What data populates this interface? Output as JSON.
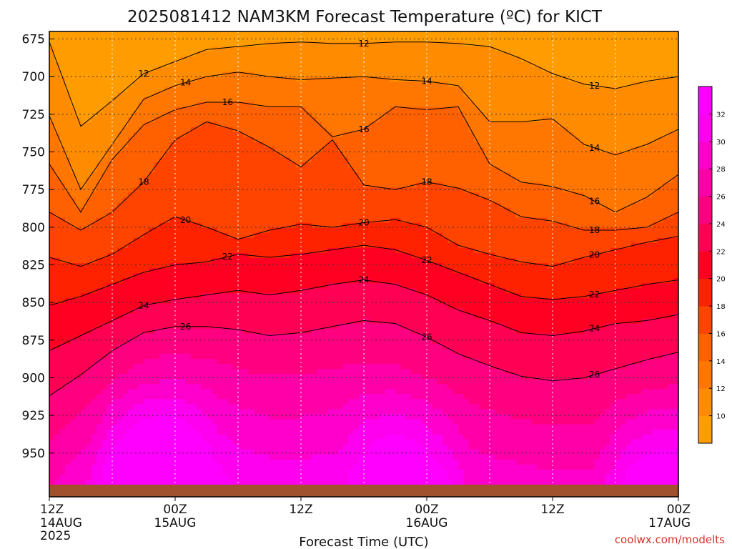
{
  "chart_data": {
    "type": "heatmap",
    "title": "2025081412 NAM3KM Forecast Temperature (ºC) for KICT",
    "xlabel": "Forecast Time (UTC)",
    "ylabel": "",
    "y_ticks": [
      675,
      700,
      725,
      750,
      775,
      800,
      825,
      850,
      875,
      900,
      925,
      950
    ],
    "ylim": [
      971,
      670
    ],
    "x_hours": [
      0,
      12,
      24,
      36,
      48,
      60
    ],
    "x_tick_labels": [
      {
        "hour": "12Z",
        "date": "14AUG",
        "year": "2025"
      },
      {
        "hour": "00Z",
        "date": "15AUG",
        "year": ""
      },
      {
        "hour": "12Z",
        "date": "",
        "year": ""
      },
      {
        "hour": "00Z",
        "date": "16AUG",
        "year": ""
      },
      {
        "hour": "12Z",
        "date": "",
        "year": ""
      },
      {
        "hour": "00Z",
        "date": "17AUG",
        "year": ""
      }
    ],
    "contour_levels": [
      10,
      11,
      12,
      13,
      14,
      15,
      16,
      17,
      18,
      19,
      20,
      21,
      22,
      23,
      24,
      25,
      26,
      27,
      28,
      29,
      30,
      31,
      32,
      33
    ],
    "colorbar_labels": [
      10,
      12,
      14,
      16,
      18,
      20,
      22,
      24,
      26,
      28,
      30,
      32
    ],
    "colorbar_colors": [
      "#ff9d00",
      "#ff8c00",
      "#ff7700",
      "#ff6000",
      "#ff4400",
      "#ff2200",
      "#ff0022",
      "#ff0055",
      "#ff0080",
      "#ff00a8",
      "#ff00cc",
      "#ff00ee",
      "#ff00ff"
    ],
    "grid": true,
    "isotherm_depth_series": [
      {
        "temp": 12,
        "points": [
          [
            0,
            677
          ],
          [
            3,
            733
          ],
          [
            6,
            716
          ],
          [
            9,
            698
          ],
          [
            12,
            690
          ],
          [
            15,
            682
          ],
          [
            18,
            680
          ],
          [
            21,
            678
          ],
          [
            24,
            677
          ],
          [
            27,
            678
          ],
          [
            30,
            678
          ],
          [
            33,
            677
          ],
          [
            36,
            677
          ],
          [
            39,
            678
          ],
          [
            42,
            680
          ],
          [
            45,
            688
          ],
          [
            48,
            698
          ],
          [
            51,
            705
          ],
          [
            54,
            708
          ],
          [
            57,
            703
          ],
          [
            60,
            700
          ]
        ]
      },
      {
        "temp": 14,
        "points": [
          [
            0,
            726
          ],
          [
            3,
            775
          ],
          [
            6,
            745
          ],
          [
            9,
            715
          ],
          [
            12,
            706
          ],
          [
            15,
            700
          ],
          [
            18,
            697
          ],
          [
            21,
            700
          ],
          [
            24,
            702
          ],
          [
            27,
            701
          ],
          [
            30,
            700
          ],
          [
            33,
            702
          ],
          [
            36,
            703
          ],
          [
            39,
            706
          ],
          [
            42,
            730
          ],
          [
            45,
            730
          ],
          [
            48,
            728
          ],
          [
            51,
            745
          ],
          [
            54,
            752
          ],
          [
            57,
            745
          ],
          [
            60,
            735
          ]
        ]
      },
      {
        "temp": 16,
        "points": [
          [
            0,
            758
          ],
          [
            3,
            790
          ],
          [
            6,
            755
          ],
          [
            9,
            732
          ],
          [
            12,
            722
          ],
          [
            15,
            717
          ],
          [
            18,
            717
          ],
          [
            21,
            720
          ],
          [
            24,
            720
          ],
          [
            27,
            740
          ],
          [
            30,
            735
          ],
          [
            33,
            720
          ],
          [
            36,
            722
          ],
          [
            39,
            720
          ],
          [
            42,
            758
          ],
          [
            45,
            770
          ],
          [
            48,
            773
          ],
          [
            51,
            779
          ],
          [
            54,
            790
          ],
          [
            57,
            780
          ],
          [
            60,
            765
          ]
        ]
      },
      {
        "temp": 18,
        "points": [
          [
            0,
            790
          ],
          [
            3,
            802
          ],
          [
            6,
            790
          ],
          [
            9,
            770
          ],
          [
            12,
            742
          ],
          [
            15,
            730
          ],
          [
            18,
            736
          ],
          [
            21,
            747
          ],
          [
            24,
            760
          ],
          [
            27,
            742
          ],
          [
            30,
            772
          ],
          [
            33,
            775
          ],
          [
            36,
            770
          ],
          [
            39,
            774
          ],
          [
            42,
            782
          ],
          [
            45,
            793
          ],
          [
            48,
            796
          ],
          [
            51,
            802
          ],
          [
            54,
            802
          ],
          [
            57,
            800
          ],
          [
            60,
            790
          ]
        ]
      },
      {
        "temp": 20,
        "points": [
          [
            0,
            820
          ],
          [
            3,
            826
          ],
          [
            6,
            818
          ],
          [
            9,
            805
          ],
          [
            12,
            793
          ],
          [
            15,
            800
          ],
          [
            18,
            808
          ],
          [
            21,
            802
          ],
          [
            24,
            798
          ],
          [
            27,
            800
          ],
          [
            30,
            797
          ],
          [
            33,
            795
          ],
          [
            36,
            800
          ],
          [
            39,
            812
          ],
          [
            42,
            818
          ],
          [
            45,
            823
          ],
          [
            48,
            826
          ],
          [
            51,
            820
          ],
          [
            54,
            815
          ],
          [
            57,
            810
          ],
          [
            60,
            806
          ]
        ]
      },
      {
        "temp": 22,
        "points": [
          [
            0,
            852
          ],
          [
            3,
            846
          ],
          [
            6,
            838
          ],
          [
            9,
            830
          ],
          [
            12,
            825
          ],
          [
            15,
            823
          ],
          [
            18,
            818
          ],
          [
            21,
            820
          ],
          [
            24,
            818
          ],
          [
            27,
            815
          ],
          [
            30,
            812
          ],
          [
            33,
            815
          ],
          [
            36,
            822
          ],
          [
            39,
            830
          ],
          [
            42,
            838
          ],
          [
            45,
            846
          ],
          [
            48,
            848
          ],
          [
            51,
            846
          ],
          [
            54,
            842
          ],
          [
            57,
            838
          ],
          [
            60,
            835
          ]
        ]
      },
      {
        "temp": 24,
        "points": [
          [
            0,
            882
          ],
          [
            3,
            872
          ],
          [
            6,
            862
          ],
          [
            9,
            852
          ],
          [
            12,
            848
          ],
          [
            15,
            845
          ],
          [
            18,
            842
          ],
          [
            21,
            845
          ],
          [
            24,
            842
          ],
          [
            27,
            838
          ],
          [
            30,
            835
          ],
          [
            33,
            838
          ],
          [
            36,
            845
          ],
          [
            39,
            855
          ],
          [
            42,
            862
          ],
          [
            45,
            870
          ],
          [
            48,
            872
          ],
          [
            51,
            869
          ],
          [
            54,
            864
          ],
          [
            57,
            862
          ],
          [
            60,
            858
          ]
        ]
      },
      {
        "temp": 26,
        "points": [
          [
            0,
            912
          ],
          [
            3,
            898
          ],
          [
            6,
            882
          ],
          [
            9,
            870
          ],
          [
            12,
            866
          ],
          [
            15,
            866
          ],
          [
            18,
            868
          ],
          [
            21,
            872
          ],
          [
            24,
            870
          ],
          [
            27,
            866
          ],
          [
            30,
            862
          ],
          [
            33,
            864
          ],
          [
            36,
            873
          ],
          [
            39,
            884
          ],
          [
            42,
            892
          ],
          [
            45,
            899
          ],
          [
            48,
            902
          ],
          [
            51,
            900
          ],
          [
            54,
            894
          ],
          [
            57,
            888
          ],
          [
            60,
            883
          ]
        ]
      }
    ]
  },
  "credit": "coolwx.com/modelts"
}
